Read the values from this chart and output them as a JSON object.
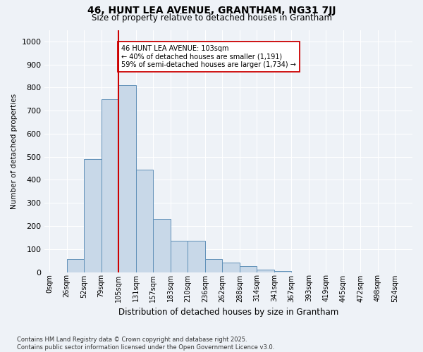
{
  "title": "46, HUNT LEA AVENUE, GRANTHAM, NG31 7JJ",
  "subtitle": "Size of property relative to detached houses in Grantham",
  "xlabel": "Distribution of detached houses by size in Grantham",
  "ylabel": "Number of detached properties",
  "bin_labels": [
    "0sqm",
    "26sqm",
    "52sqm",
    "79sqm",
    "105sqm",
    "131sqm",
    "157sqm",
    "183sqm",
    "210sqm",
    "236sqm",
    "262sqm",
    "288sqm",
    "314sqm",
    "341sqm",
    "367sqm",
    "393sqm",
    "419sqm",
    "445sqm",
    "472sqm",
    "498sqm",
    "524sqm"
  ],
  "bar_heights": [
    0,
    55,
    490,
    750,
    810,
    445,
    230,
    135,
    135,
    55,
    40,
    25,
    10,
    5,
    0,
    0,
    0,
    0,
    0,
    0,
    0
  ],
  "n_bins": 21,
  "property_size_bin": 4,
  "vline_color": "#cc0000",
  "annotation_text": "46 HUNT LEA AVENUE: 103sqm\n← 40% of detached houses are smaller (1,191)\n59% of semi-detached houses are larger (1,734) →",
  "annotation_bbox_color": "#ffffff",
  "annotation_bbox_edge": "#cc0000",
  "bar_color": "#c8d8e8",
  "bar_edge_color": "#6090b8",
  "ylim": [
    0,
    1000
  ],
  "yticks": [
    0,
    100,
    200,
    300,
    400,
    500,
    600,
    700,
    800,
    900,
    1000
  ],
  "background_color": "#eef2f7",
  "grid_color": "#ffffff",
  "title_fontsize": 10,
  "subtitle_fontsize": 8.5,
  "footnote": "Contains HM Land Registry data © Crown copyright and database right 2025.\nContains public sector information licensed under the Open Government Licence v3.0."
}
